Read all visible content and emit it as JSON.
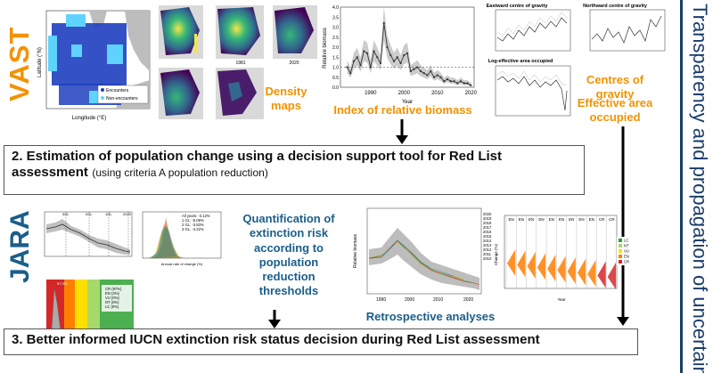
{
  "side_title": "Transparency and propagation of uncertainty",
  "vast": {
    "label": "VAST",
    "map_legend": [
      "Encounters",
      "Non-encounters"
    ],
    "map_xlabel": "Longitude (°E)",
    "map_ylabel": "Latitude (°N)",
    "density_years": [
      "1981",
      "2020"
    ],
    "density_label": "Density maps",
    "index_label": "Index of relative biomass",
    "biomass_ylabel": "Relative biomass",
    "biomass_xlabel": "Year",
    "centres_label": "Centres of gravity",
    "area_label": "Effective area occupied",
    "eastward_title": "Eastward centre of gravity",
    "northward_title": "Northward centre of gravity",
    "log_area_title": "Log-effective area occupied"
  },
  "step2": {
    "main": "2. Estimation of population change using a decision support tool for Red List assessment",
    "sub": "(using criteria A population reduction)"
  },
  "jara": {
    "label": "JARA",
    "quant_label": "Quantification of extinction risk according to population reduction thresholds",
    "retro_label": "Retrospective analyses",
    "hist_legend": [
      "All years: -3.12%",
      "1 GL: -5.09%",
      "2 GL: -3.83%",
      "3 GL: -4.22%"
    ],
    "risk_legend": [
      "CR (97%)",
      "EN (3%)",
      "VU (0%)",
      "NT (0%)",
      "LC (0%)"
    ],
    "retro_years": [
      "2020",
      "2019",
      "2018",
      "2017",
      "2016",
      "2015",
      "2014",
      "2013",
      "2012",
      "2011",
      "2010"
    ],
    "status_legend": [
      "LC",
      "NT",
      "VU",
      "EN",
      "CR"
    ],
    "status_colors": [
      "#2ca02c",
      "#a6d96a",
      "#ffdf00",
      "#ff7f00",
      "#d62728"
    ],
    "panel_statuses": [
      "EN",
      "EN",
      "EN",
      "EN",
      "EN",
      "EN",
      "EN",
      "EN",
      "EN",
      "CR",
      "CR"
    ],
    "hist_xlabel": "Annual rate of change (%)",
    "risk_xlabel": "Change (%)",
    "retro_ylabel": "Relative biomass",
    "retro_xlabel": "Year",
    "status_xlabel": "Year",
    "status_ylabel": "Change (%)",
    "gl_labels": [
      "3GL",
      "2GL",
      "1GL",
      "2020"
    ],
    "risk_top_label": "97.3%"
  },
  "step3": {
    "main": "3. Better informed IUCN extinction risk status decision during Red List assessment"
  },
  "chart_data": [
    {
      "type": "line",
      "title": "Index of relative biomass",
      "xlabel": "Year",
      "ylabel": "Relative biomass",
      "x": [
        1983,
        1984,
        1985,
        1986,
        1987,
        1988,
        1989,
        1990,
        1991,
        1992,
        1993,
        1994,
        1995,
        1996,
        1997,
        1998,
        1999,
        2000,
        2001,
        2002,
        2003,
        2004,
        2005,
        2006,
        2007,
        2008,
        2009,
        2010,
        2011,
        2012,
        2013,
        2014,
        2015,
        2016,
        2017,
        2018,
        2019,
        2020
      ],
      "y": [
        1.0,
        0.7,
        1.3,
        1.5,
        1.1,
        1.8,
        1.7,
        1.0,
        1.8,
        1.5,
        1.2,
        3.2,
        2.0,
        1.6,
        1.3,
        1.5,
        1.2,
        1.6,
        1.7,
        0.8,
        0.9,
        1.0,
        0.8,
        0.7,
        0.6,
        0.8,
        0.5,
        0.6,
        0.5,
        0.3,
        0.4,
        0.3,
        0.3,
        0.2,
        0.3,
        0.2,
        0.2,
        0.1
      ],
      "xlim": [
        1981,
        2021
      ],
      "ylim": [
        0,
        4
      ],
      "xticks": [
        1990,
        2000,
        2010,
        2020
      ],
      "yticks": [
        0.0,
        0.5,
        1.0,
        1.5,
        2.0,
        2.5,
        3.0,
        3.5,
        4.0
      ]
    }
  ]
}
